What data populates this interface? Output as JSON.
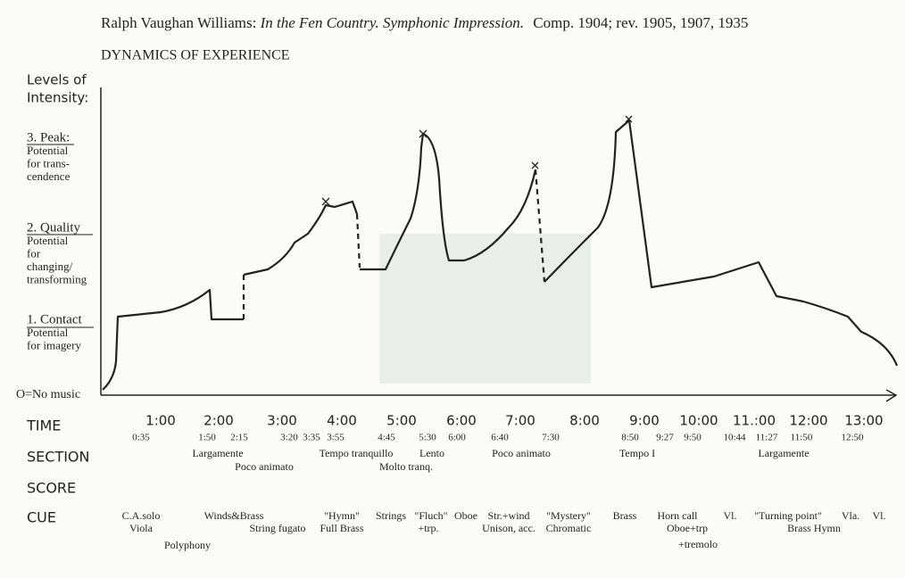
{
  "header": {
    "composer": "Ralph Vaughan Williams:",
    "work": "In the Fen Country. Symphonic Impression.",
    "dates": "Comp. 1904; rev. 1905, 1907, 1935",
    "subtitle": "DYNAMICS OF EXPERIENCE"
  },
  "levels": {
    "heading": [
      "Levels of",
      "Intensity:"
    ],
    "items": [
      {
        "name": "3. Peak:",
        "lines": [
          "Potential",
          "for trans-",
          "cendence"
        ]
      },
      {
        "name": "2. Quality",
        "lines": [
          "Potential",
          "for",
          "changing/",
          "transforming"
        ]
      },
      {
        "name": "1. Contact",
        "lines": [
          "Potential",
          "for imagery"
        ]
      }
    ],
    "zero": "O=No music"
  },
  "rows": {
    "time": "TIME",
    "section": "SECTION",
    "score": "SCORE",
    "cue": "CUE"
  },
  "time_major": [
    "1:00",
    "2:00",
    "3:00",
    "4:00",
    "5:00",
    "6:00",
    "7:00",
    "8:00",
    "9:00",
    "10:00",
    "11.:00",
    "12:00",
    "13:00"
  ],
  "time_minor": [
    "0:35",
    "1:50",
    "2:15",
    "3:20",
    "3:35",
    "3:55",
    "4:45",
    "5:30",
    "6:00",
    "6:40",
    "7:30",
    "8:50",
    "9:27",
    "9:50",
    "10:44",
    "11:27",
    "11:50",
    "12:50"
  ],
  "sections": [
    "Largamente",
    "Poco animato",
    "Tempo tranquillo",
    "Lento",
    "Molto tranq.",
    "Poco animato",
    "Tempo I",
    "Largamente"
  ],
  "cues": [
    "C.A.solo",
    "Viola",
    "Polyphony",
    "Winds&Brass",
    "String fugato",
    "\"Hymn\"",
    "Full Brass",
    "Strings",
    "\"Fluch\"",
    "+trp.",
    "Oboe",
    "Str.+wind",
    "Unison, acc.",
    "\"Mystery\"",
    "Chromatic",
    "Brass",
    "Horn call",
    "Oboe+trp",
    "+tremolo",
    "Vl.",
    "\"Turning point\"",
    "Brass Hymn",
    "Vla.",
    "Vl."
  ]
}
